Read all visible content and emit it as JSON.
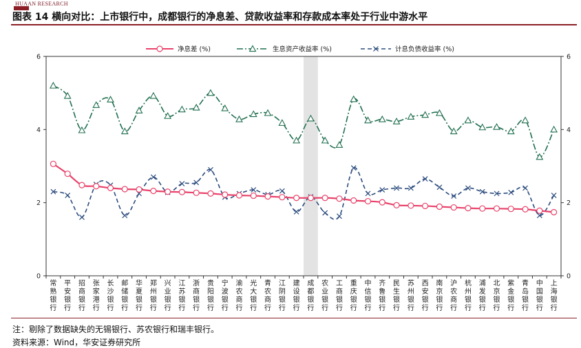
{
  "header": {
    "logo_text": "HUAAN RESEARCH",
    "title": "图表 14 横向对比：上市银行中，成都银行的净息差、贷款收益率和存款成本率处于行业中游水平"
  },
  "footer": {
    "note": "注：剔除了数据缺失的无锡银行、苏农银行和瑞丰银行。",
    "source": "资料来源：Wind，华安证券研究所"
  },
  "colors": {
    "nim": "#e8426a",
    "yield": "#1f6e4e",
    "cost": "#2b4b7e",
    "highlight": "#e3e3e3",
    "brand": "#8c1d24"
  },
  "chart_data": {
    "type": "line",
    "title": "",
    "xlabel": "",
    "ylabel": "",
    "ylim": [
      0,
      6
    ],
    "yticks": [
      "0",
      "2",
      "4",
      "6"
    ],
    "highlight_category": "成都银行",
    "categories": [
      "常熟银行",
      "平安银行",
      "招商银行",
      "张家港行",
      "长沙银行",
      "邮储银行",
      "华夏银行",
      "郑州银行",
      "兴业银行",
      "江苏银行",
      "浙商银行",
      "贵阳银行",
      "宁波银行",
      "渝农商行",
      "光大银行",
      "青农商行",
      "江阴银行",
      "建设银行",
      "成都银行",
      "农业银行",
      "工商银行",
      "重庆银行",
      "中信银行",
      "齐鲁银行",
      "民生银行",
      "苏州银行",
      "西安银行",
      "南京银行",
      "沪农商行",
      "杭州银行",
      "浦发银行",
      "北京银行",
      "紫金银行",
      "青岛银行",
      "中国银行",
      "上海银行"
    ],
    "series": [
      {
        "name": "净息差 (%)",
        "marker": "circle",
        "dash": "solid",
        "values": [
          3.06,
          2.79,
          2.48,
          2.45,
          2.4,
          2.37,
          2.36,
          2.32,
          2.3,
          2.29,
          2.27,
          2.25,
          2.22,
          2.2,
          2.19,
          2.17,
          2.15,
          2.13,
          2.13,
          2.13,
          2.11,
          2.06,
          2.04,
          2.01,
          1.93,
          1.92,
          1.91,
          1.89,
          1.87,
          1.85,
          1.84,
          1.84,
          1.83,
          1.82,
          1.78,
          1.74
        ]
      },
      {
        "name": "生息资产收益率 (%)",
        "marker": "triangle",
        "dash": "dashdot",
        "values": [
          5.2,
          4.92,
          3.98,
          4.67,
          4.82,
          3.95,
          4.52,
          4.92,
          4.37,
          4.55,
          4.6,
          5.0,
          4.58,
          4.28,
          4.42,
          4.45,
          4.18,
          3.7,
          4.3,
          3.7,
          3.58,
          4.83,
          4.25,
          4.28,
          4.22,
          4.35,
          4.4,
          4.45,
          3.95,
          4.25,
          4.06,
          4.07,
          3.95,
          4.25,
          3.25,
          4.0
        ]
      },
      {
        "name": "计息负债收益率 (%)",
        "marker": "x",
        "dash": "dash",
        "values": [
          2.3,
          2.2,
          1.6,
          2.5,
          2.48,
          1.65,
          2.25,
          2.7,
          2.28,
          2.52,
          2.55,
          2.9,
          2.15,
          2.25,
          2.35,
          2.22,
          2.32,
          1.75,
          2.16,
          1.72,
          1.63,
          2.95,
          2.25,
          2.35,
          2.4,
          2.4,
          2.65,
          2.42,
          2.18,
          2.4,
          2.3,
          2.25,
          2.28,
          2.4,
          1.65,
          2.2
        ]
      }
    ]
  }
}
